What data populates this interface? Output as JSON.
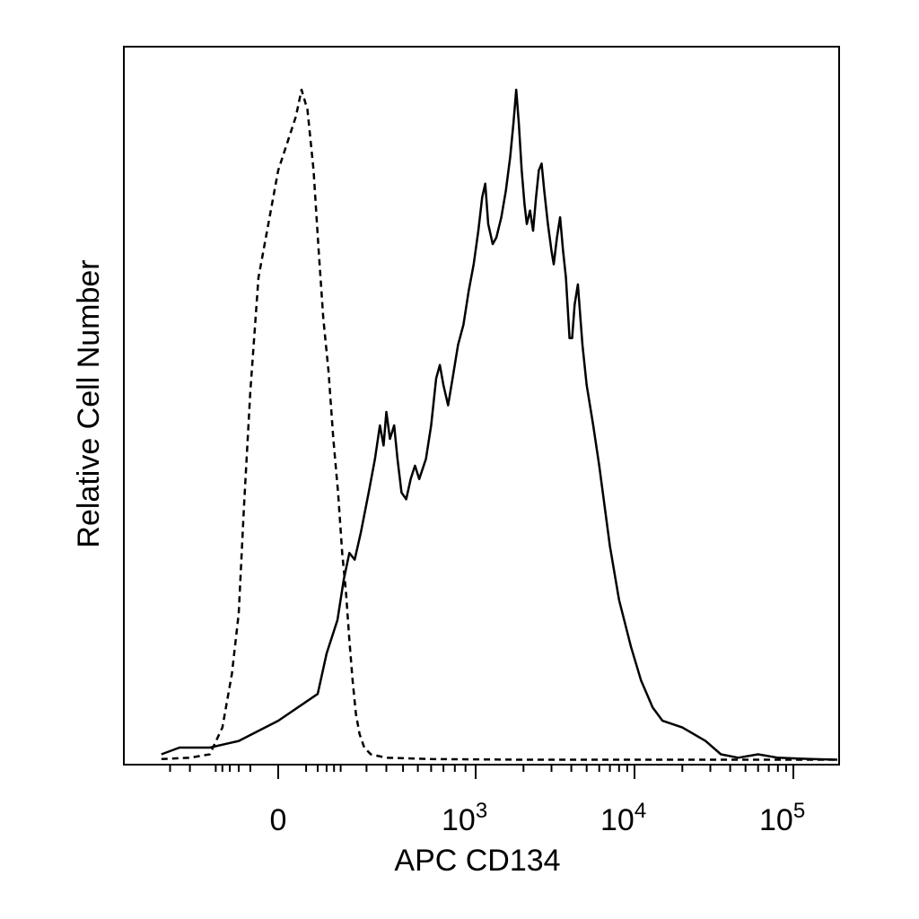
{
  "chart_data": {
    "type": "line",
    "title": "",
    "xlabel": "APC CD134",
    "ylabel": "Relative Cell Number",
    "x_scale": "biexponential",
    "xlim": [
      -400,
      200000
    ],
    "ylim": [
      0,
      100
    ],
    "y_ticks_labeled": false,
    "x_tick_labels": [
      {
        "value": 0,
        "base": "0",
        "exp": ""
      },
      {
        "value": 1000,
        "base": "10",
        "exp": "3"
      },
      {
        "value": 10000,
        "base": "10",
        "exp": "4"
      },
      {
        "value": 100000,
        "base": "10",
        "exp": "5"
      }
    ],
    "grid": false,
    "legend": "none",
    "series": [
      {
        "style": "solid",
        "color": "#000000",
        "points": [
          [
            -350,
            1
          ],
          [
            -250,
            2
          ],
          [
            -120,
            2
          ],
          [
            -40,
            3
          ],
          [
            0,
            6
          ],
          [
            40,
            10
          ],
          [
            60,
            16
          ],
          [
            90,
            21
          ],
          [
            110,
            27
          ],
          [
            130,
            31
          ],
          [
            150,
            30
          ],
          [
            175,
            34
          ],
          [
            210,
            40
          ],
          [
            240,
            45
          ],
          [
            265,
            50
          ],
          [
            285,
            47
          ],
          [
            300,
            52
          ],
          [
            320,
            48
          ],
          [
            345,
            50
          ],
          [
            365,
            45
          ],
          [
            390,
            40
          ],
          [
            420,
            39
          ],
          [
            450,
            42
          ],
          [
            480,
            44
          ],
          [
            510,
            42
          ],
          [
            560,
            45
          ],
          [
            600,
            50
          ],
          [
            640,
            57
          ],
          [
            670,
            59
          ],
          [
            700,
            56
          ],
          [
            740,
            53
          ],
          [
            780,
            57
          ],
          [
            830,
            62
          ],
          [
            880,
            65
          ],
          [
            930,
            70
          ],
          [
            980,
            74
          ],
          [
            1040,
            79
          ],
          [
            1100,
            84
          ],
          [
            1150,
            86
          ],
          [
            1200,
            80
          ],
          [
            1280,
            77
          ],
          [
            1350,
            78
          ],
          [
            1450,
            81
          ],
          [
            1550,
            85
          ],
          [
            1650,
            90
          ],
          [
            1730,
            95
          ],
          [
            1800,
            100
          ],
          [
            1870,
            95
          ],
          [
            1950,
            88
          ],
          [
            2030,
            83
          ],
          [
            2100,
            80
          ],
          [
            2200,
            82
          ],
          [
            2300,
            79
          ],
          [
            2400,
            84
          ],
          [
            2500,
            88
          ],
          [
            2600,
            89
          ],
          [
            2700,
            85
          ],
          [
            2850,
            80
          ],
          [
            3000,
            76
          ],
          [
            3100,
            74
          ],
          [
            3250,
            78
          ],
          [
            3400,
            81
          ],
          [
            3550,
            76
          ],
          [
            3700,
            72
          ],
          [
            3900,
            63
          ],
          [
            4050,
            63
          ],
          [
            4200,
            68
          ],
          [
            4400,
            71
          ],
          [
            4700,
            62
          ],
          [
            5000,
            56
          ],
          [
            5500,
            50
          ],
          [
            6000,
            44
          ],
          [
            7000,
            32
          ],
          [
            8000,
            24
          ],
          [
            9500,
            17
          ],
          [
            11000,
            12
          ],
          [
            13000,
            8
          ],
          [
            15000,
            6
          ],
          [
            20000,
            5
          ],
          [
            28000,
            3
          ],
          [
            35000,
            1
          ],
          [
            45000,
            0.5
          ],
          [
            60000,
            1
          ],
          [
            80000,
            0.5
          ],
          [
            130000,
            0.3
          ],
          [
            190000,
            0.2
          ]
        ]
      },
      {
        "style": "dashed",
        "color": "#000000",
        "points": [
          [
            -350,
            0.3
          ],
          [
            -200,
            0.5
          ],
          [
            -120,
            1
          ],
          [
            -80,
            5
          ],
          [
            -55,
            13
          ],
          [
            -40,
            22
          ],
          [
            -30,
            38
          ],
          [
            -20,
            55
          ],
          [
            -10,
            72
          ],
          [
            0,
            88
          ],
          [
            8,
            96
          ],
          [
            14,
            100
          ],
          [
            22,
            97
          ],
          [
            32,
            88
          ],
          [
            42,
            76
          ],
          [
            52,
            66
          ],
          [
            65,
            58
          ],
          [
            78,
            48
          ],
          [
            92,
            40
          ],
          [
            105,
            31
          ],
          [
            118,
            25
          ],
          [
            130,
            18
          ],
          [
            142,
            12
          ],
          [
            155,
            7
          ],
          [
            170,
            4
          ],
          [
            190,
            2
          ],
          [
            220,
            1
          ],
          [
            300,
            0.5
          ],
          [
            600,
            0.3
          ],
          [
            2000,
            0.2
          ],
          [
            10000,
            0.2
          ],
          [
            100000,
            0.2
          ],
          [
            190000,
            0.2
          ]
        ]
      }
    ]
  }
}
